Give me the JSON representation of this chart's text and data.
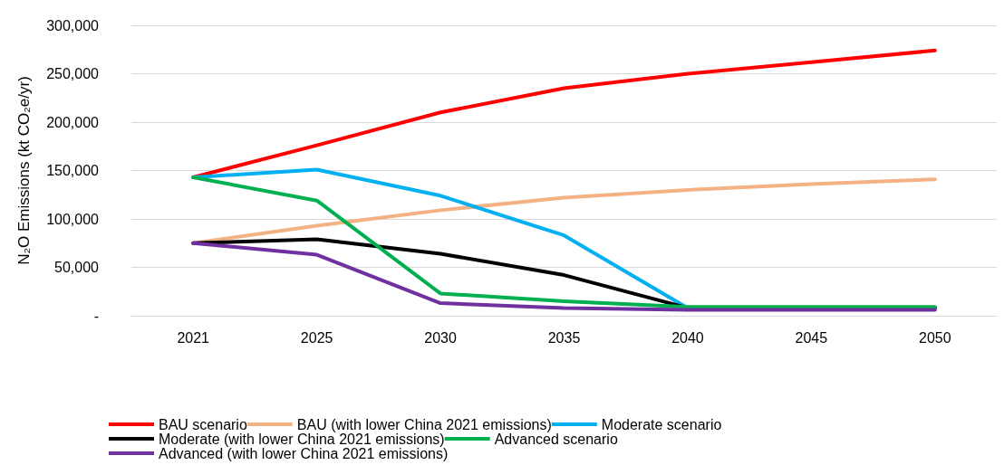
{
  "chart_data": {
    "type": "line",
    "ylabel": "N₂O Emissions (kt CO₂e/yr)",
    "categories": [
      "2021",
      "2025",
      "2030",
      "2035",
      "2040",
      "2045",
      "2050"
    ],
    "series": [
      {
        "name": "BAU scenario",
        "color": "#ff0000",
        "values": [
          143000,
          176000,
          210000,
          235000,
          250000,
          262000,
          274000
        ]
      },
      {
        "name": "BAU (with lower China 2021 emissions)",
        "color": "#f4b183",
        "values": [
          75000,
          93000,
          109000,
          122000,
          130000,
          136000,
          141000
        ]
      },
      {
        "name": "Moderate scenario",
        "color": "#00b0f0",
        "values": [
          143000,
          151000,
          124000,
          83000,
          8000,
          8000,
          8000
        ]
      },
      {
        "name": "Moderate (with lower China 2021 emissions)",
        "color": "#000000",
        "values": [
          75000,
          79000,
          64000,
          42000,
          8000,
          8000,
          8000
        ]
      },
      {
        "name": "Advanced scenario",
        "color": "#00b050",
        "values": [
          143000,
          119000,
          23000,
          15000,
          9000,
          9000,
          9000
        ]
      },
      {
        "name": "Advanced (with lower China 2021 emissions)",
        "color": "#7030a0",
        "values": [
          75000,
          63000,
          13000,
          8000,
          6000,
          6000,
          6000
        ]
      }
    ],
    "ylim": [
      0,
      300000
    ],
    "yticks": [
      {
        "value": 0,
        "label": "-"
      },
      {
        "value": 50000,
        "label": "50,000"
      },
      {
        "value": 100000,
        "label": "100,000"
      },
      {
        "value": 150000,
        "label": "150,000"
      },
      {
        "value": 200000,
        "label": "200,000"
      },
      {
        "value": 250000,
        "label": "250,000"
      },
      {
        "value": 300000,
        "label": "300,000"
      }
    ],
    "grid": "y",
    "legend": "bottom",
    "marker": "none",
    "line_style": "solid"
  }
}
